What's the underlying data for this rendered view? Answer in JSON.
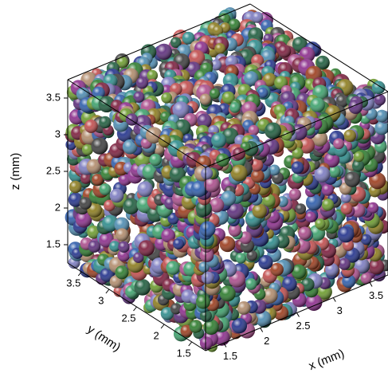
{
  "chart_data": {
    "type": "scatter3d",
    "xlabel": "x (mm)",
    "ylabel": "y (mm)",
    "zlabel": "z (mm)",
    "xlim": [
      1.25,
      3.75
    ],
    "ylim": [
      1.25,
      3.75
    ],
    "zlim": [
      1.25,
      3.75
    ],
    "xticks": [
      1.5,
      2,
      2.5,
      3,
      3.5
    ],
    "yticks": [
      1.5,
      2,
      2.5,
      3,
      3.5
    ],
    "zticks": [
      1.5,
      2,
      2.5,
      3,
      3.5
    ]
  }
}
